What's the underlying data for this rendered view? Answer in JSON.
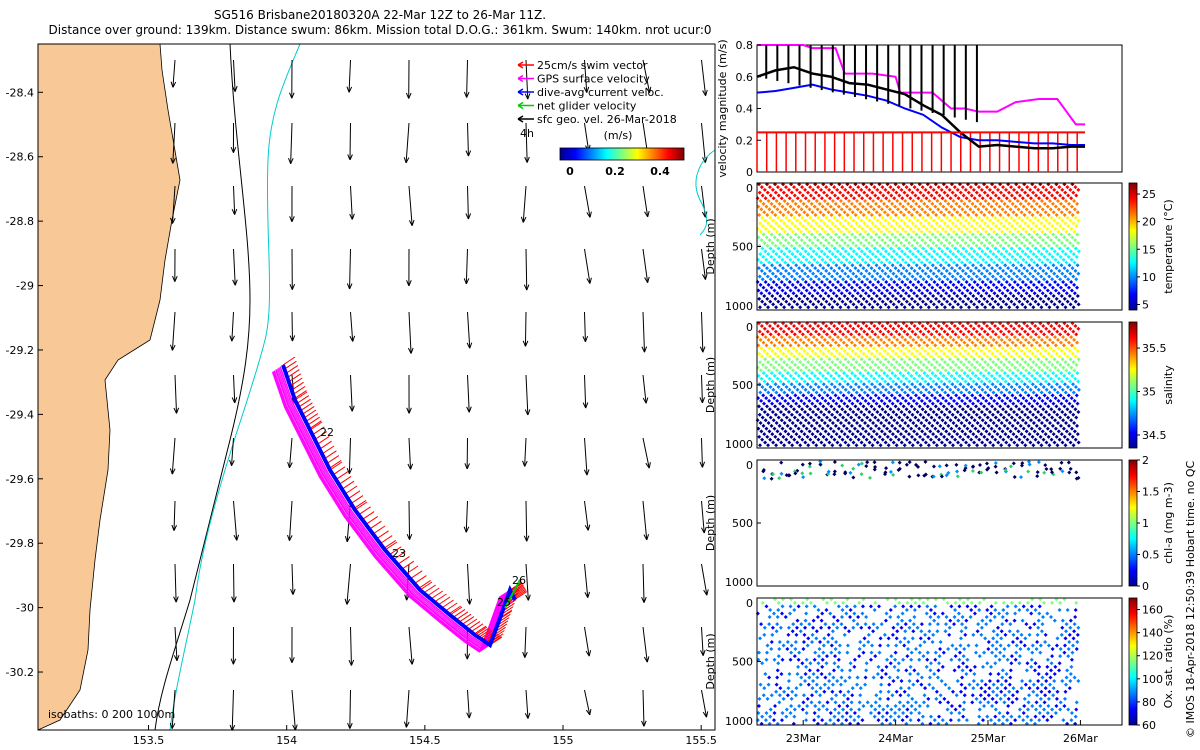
{
  "header": {
    "line1": "SG516 Brisbane20180320A 22-Mar 12Z to 26-Mar 11Z.",
    "line2": "Distance over ground: 139km. Distance swum: 86km. Mission total D.O.G.: 361km. Swum: 140km. nrot ucur:0"
  },
  "side_note": "© IMOS 18-Apr-2018 12:50:39 Hobart time. no QC",
  "colors": {
    "land": "#f8c896",
    "coast": "#000000",
    "isobath_200": "#00cccc",
    "isobath_1000": "#000000",
    "swim_vector": "#ff0000",
    "gps_velocity": "#ff00ff",
    "dive_avg": "#0000ff",
    "net_glider": "#00cc00",
    "sfc_geo": "#000000"
  },
  "map": {
    "x_ticks": [
      "153.5",
      "154",
      "154.5",
      "155",
      "155.5"
    ],
    "y_ticks": [
      "-28.4",
      "-28.6",
      "-28.8",
      "-29",
      "-29.2",
      "-29.4",
      "-29.6",
      "-29.8",
      "-30",
      "-30.2"
    ],
    "xlim": [
      153.1,
      155.55
    ],
    "ylim": [
      -30.38,
      -28.25
    ],
    "isobaths_label": "isobaths: 0   200  1000m",
    "legend": [
      {
        "label": "25cm/s swim vector",
        "color": "#ff0000"
      },
      {
        "label": "GPS surface velocity",
        "color": "#ff00ff"
      },
      {
        "label": "dive-avg current veloc.",
        "color": "#0000ff"
      },
      {
        "label": "net glider velocity",
        "color": "#00cc00"
      },
      {
        "label": "sfc geo. vel. 26-Mar-2018",
        "color": "#000000"
      }
    ],
    "legend_time_label": "4h",
    "colorbar_unit": "(m/s)",
    "colorbar_ticks": [
      "0",
      "0.2",
      "0.4"
    ],
    "day_labels": [
      "22",
      "23",
      "26",
      "25"
    ]
  },
  "chart_data": [
    {
      "type": "line",
      "ylabel": "velocity magnitude (m/s)",
      "ylim": [
        0,
        0.8
      ],
      "y_ticks": [
        "0",
        "0.2",
        "0.4",
        "0.6",
        "0.8"
      ],
      "series": [
        {
          "color": "#ff00ff",
          "x": [
            0,
            0.5,
            0.6,
            0.85,
            0.95,
            1.25,
            1.5,
            1.55,
            1.9,
            2.1,
            2.25,
            2.4,
            2.6,
            2.8,
            3.05,
            3.25,
            3.45,
            3.55
          ],
          "y": [
            0.8,
            0.8,
            0.78,
            0.78,
            0.62,
            0.62,
            0.6,
            0.5,
            0.5,
            0.4,
            0.4,
            0.38,
            0.38,
            0.44,
            0.46,
            0.46,
            0.3,
            0.3
          ]
        },
        {
          "color": "#0000ff",
          "x": [
            0,
            0.2,
            0.4,
            0.6,
            0.8,
            1.0,
            1.2,
            1.4,
            1.6,
            1.8,
            2.0,
            2.2,
            2.4,
            2.6,
            2.8,
            3.0,
            3.2,
            3.4,
            3.55
          ],
          "y": [
            0.5,
            0.51,
            0.53,
            0.55,
            0.52,
            0.5,
            0.48,
            0.45,
            0.4,
            0.36,
            0.28,
            0.22,
            0.2,
            0.2,
            0.19,
            0.18,
            0.18,
            0.17,
            0.17
          ]
        },
        {
          "color": "#000000",
          "x": [
            0,
            0.2,
            0.4,
            0.6,
            0.8,
            1.0,
            1.2,
            1.4,
            1.6,
            1.8,
            2.0,
            2.2,
            2.4,
            2.6,
            2.8,
            3.0,
            3.2,
            3.4,
            3.55
          ],
          "y": [
            0.6,
            0.64,
            0.66,
            0.62,
            0.6,
            0.56,
            0.55,
            0.52,
            0.49,
            0.42,
            0.36,
            0.25,
            0.16,
            0.17,
            0.16,
            0.15,
            0.15,
            0.16,
            0.16
          ]
        },
        {
          "color": "#ff0000",
          "x": [
            0,
            3.55
          ],
          "y": [
            0.25,
            0.25
          ]
        }
      ]
    },
    {
      "type": "scatter",
      "ylabel": "Depth (m)",
      "y_ticks": [
        "0",
        "500",
        "1000"
      ],
      "colorbar_label": "temperature (°C)",
      "colorbar_ticks": [
        "5",
        "10",
        "15",
        "20",
        "25"
      ],
      "clim": [
        4,
        27
      ]
    },
    {
      "type": "scatter",
      "ylabel": "Depth (m)",
      "y_ticks": [
        "0",
        "500",
        "1000"
      ],
      "colorbar_label": "salinity",
      "colorbar_ticks": [
        "34.5",
        "35",
        "35.5"
      ],
      "clim": [
        34.35,
        35.8
      ]
    },
    {
      "type": "scatter",
      "ylabel": "Depth (m)",
      "y_ticks": [
        "0",
        "500",
        "1000"
      ],
      "colorbar_label": "chl-a (mg m-3)",
      "colorbar_ticks": [
        "0",
        "0.5",
        "1",
        "1.5",
        "2"
      ],
      "clim": [
        0,
        2
      ]
    },
    {
      "type": "scatter",
      "ylabel": "Depth (m)",
      "y_ticks": [
        "0",
        "500",
        "1000"
      ],
      "colorbar_label": "Ox. sat. ratio (%)",
      "colorbar_ticks": [
        "60",
        "80",
        "100",
        "120",
        "140",
        "160"
      ],
      "clim": [
        60,
        170
      ]
    }
  ],
  "time_axis": {
    "labels": [
      "23Mar",
      "24Mar",
      "25Mar",
      "26Mar"
    ],
    "range_days": [
      0,
      3.95
    ]
  }
}
